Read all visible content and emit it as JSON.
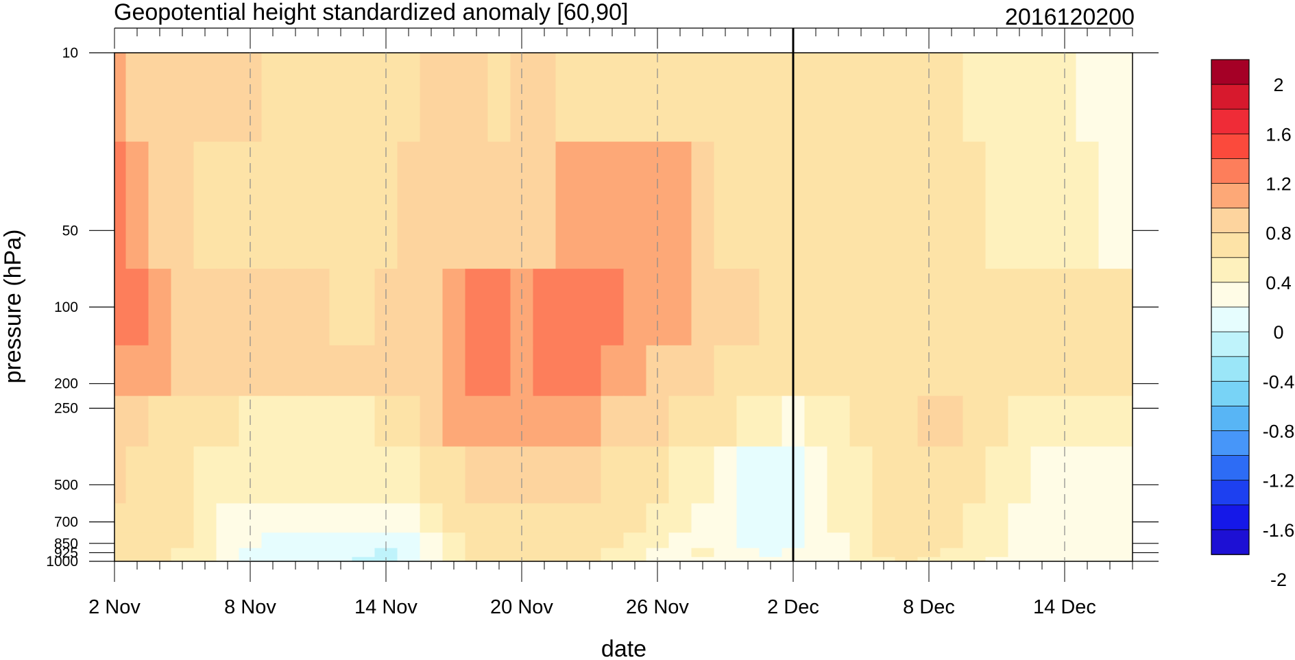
{
  "chart_data": {
    "type": "heatmap",
    "title": "Geopotential height standardized anomaly [60,90]",
    "subtitle": "2016120200",
    "xlabel": "date",
    "ylabel": "pressure (hPa)",
    "x": [
      "2016-11-02",
      "2016-11-03",
      "2016-11-04",
      "2016-11-05",
      "2016-11-06",
      "2016-11-07",
      "2016-11-08",
      "2016-11-09",
      "2016-11-10",
      "2016-11-11",
      "2016-11-12",
      "2016-11-13",
      "2016-11-14",
      "2016-11-15",
      "2016-11-16",
      "2016-11-17",
      "2016-11-18",
      "2016-11-19",
      "2016-11-20",
      "2016-11-21",
      "2016-11-22",
      "2016-11-23",
      "2016-11-24",
      "2016-11-25",
      "2016-11-26",
      "2016-11-27",
      "2016-11-28",
      "2016-11-29",
      "2016-11-30",
      "2016-12-01",
      "2016-12-02",
      "2016-12-03",
      "2016-12-04",
      "2016-12-05",
      "2016-12-06",
      "2016-12-07",
      "2016-12-08",
      "2016-12-09",
      "2016-12-10",
      "2016-12-11",
      "2016-12-12",
      "2016-12-13",
      "2016-12-14",
      "2016-12-15",
      "2016-12-16",
      "2016-12-17"
    ],
    "x_tick_labels": [
      "2 Nov",
      "8 Nov",
      "14 Nov",
      "20 Nov",
      "26 Nov",
      "2 Dec",
      "8 Dec",
      "14 Dec"
    ],
    "y_levels": [
      10,
      50,
      100,
      200,
      250,
      500,
      700,
      850,
      925,
      1000
    ],
    "y_tick_labels": [
      "10",
      "50",
      "100",
      "200",
      "250",
      "500",
      "700",
      "850",
      "925",
      "1000"
    ],
    "y_scale": "log",
    "ylim": [
      1000,
      10
    ],
    "marker_date": "2016-12-02",
    "colorbar": {
      "levels": [
        -2,
        -1.8,
        -1.6,
        -1.4,
        -1.2,
        -1,
        -0.8,
        -0.6,
        -0.4,
        -0.2,
        0,
        0.2,
        0.4,
        0.6,
        0.8,
        1,
        1.2,
        1.4,
        1.6,
        1.8,
        2
      ],
      "labels": [
        "2",
        "1.6",
        "1.2",
        "0.8",
        "0.4",
        "0",
        "-0.4",
        "-0.8",
        "-1.2",
        "-1.6",
        "-2"
      ],
      "colors_top_to_bottom": [
        "#a50026",
        "#d7192d",
        "#ef2c37",
        "#fb4a3c",
        "#fd7e5b",
        "#fda877",
        "#fdd49e",
        "#fde3a7",
        "#fef1bd",
        "#fffce6",
        "#e6fdfe",
        "#bff3fb",
        "#9be6f8",
        "#78d3f6",
        "#58b5f5",
        "#4796f9",
        "#2d6cf5",
        "#1d40f0",
        "#1518e8",
        "#1d10d4"
      ]
    },
    "z": [
      [
        0.85,
        0.78,
        0.6,
        0.65,
        0.7,
        0.6,
        0.6,
        0.5,
        0.48,
        0.55,
        0.52,
        0.5,
        0.56,
        0.55,
        0.6,
        0.62,
        0.66,
        0.58,
        0.6,
        0.6,
        0.58,
        0.52,
        0.5,
        0.5,
        0.55,
        0.5,
        0.5,
        0.45,
        0.45,
        0.45,
        0.5,
        0.46,
        0.42,
        0.42,
        0.41,
        0.44,
        0.46,
        0.45,
        0.38,
        0.35,
        0.3,
        0.25,
        0.2,
        0.15,
        0.1,
        0.05
      ],
      [
        1.0,
        0.85,
        0.7,
        0.6,
        0.5,
        0.45,
        0.55,
        0.55,
        0.45,
        0.45,
        0.5,
        0.5,
        0.55,
        0.6,
        0.6,
        0.65,
        0.7,
        0.7,
        0.75,
        0.78,
        0.82,
        0.85,
        0.9,
        0.95,
        0.95,
        0.85,
        0.7,
        0.55,
        0.5,
        0.5,
        0.55,
        0.55,
        0.52,
        0.5,
        0.5,
        0.5,
        0.55,
        0.5,
        0.45,
        0.38,
        0.33,
        0.3,
        0.25,
        0.22,
        0.18,
        0.15
      ],
      [
        1.05,
        1.0,
        0.95,
        0.78,
        0.7,
        0.65,
        0.65,
        0.6,
        0.6,
        0.6,
        0.55,
        0.55,
        0.6,
        0.62,
        0.7,
        0.85,
        1.0,
        1.05,
        0.95,
        1.05,
        1.15,
        1.15,
        1.05,
        0.98,
        0.92,
        0.85,
        0.78,
        0.65,
        0.6,
        0.55,
        0.55,
        0.55,
        0.55,
        0.55,
        0.5,
        0.5,
        0.5,
        0.5,
        0.48,
        0.45,
        0.42,
        0.42,
        0.42,
        0.42,
        0.42,
        0.42
      ],
      [
        0.92,
        0.85,
        0.8,
        0.72,
        0.68,
        0.62,
        0.62,
        0.6,
        0.6,
        0.6,
        0.6,
        0.6,
        0.62,
        0.65,
        0.7,
        0.9,
        1.1,
        1.15,
        0.95,
        1.05,
        1.1,
        1.05,
        0.95,
        0.85,
        0.78,
        0.7,
        0.62,
        0.55,
        0.5,
        0.45,
        0.4,
        0.45,
        0.5,
        0.52,
        0.55,
        0.55,
        0.55,
        0.55,
        0.55,
        0.5,
        0.45,
        0.42,
        0.4,
        0.4,
        0.4,
        0.4
      ],
      [
        0.65,
        0.6,
        0.58,
        0.55,
        0.5,
        0.42,
        0.38,
        0.38,
        0.35,
        0.35,
        0.35,
        0.38,
        0.4,
        0.45,
        0.6,
        0.8,
        0.95,
        0.9,
        0.85,
        0.85,
        0.85,
        0.82,
        0.75,
        0.68,
        0.6,
        0.5,
        0.45,
        0.4,
        0.3,
        0.2,
        0.15,
        0.2,
        0.3,
        0.4,
        0.5,
        0.55,
        0.6,
        0.6,
        0.55,
        0.45,
        0.35,
        0.3,
        0.28,
        0.28,
        0.25,
        0.22
      ],
      [
        0.6,
        0.55,
        0.52,
        0.48,
        0.35,
        0.32,
        0.3,
        0.3,
        0.3,
        0.28,
        0.3,
        0.32,
        0.32,
        0.35,
        0.4,
        0.5,
        0.62,
        0.6,
        0.6,
        0.6,
        0.6,
        0.6,
        0.55,
        0.5,
        0.42,
        0.32,
        0.25,
        0.12,
        -0.05,
        -0.1,
        -0.1,
        0.05,
        0.25,
        0.38,
        0.45,
        0.55,
        0.5,
        0.48,
        0.4,
        0.3,
        0.22,
        0.18,
        0.18,
        0.18,
        0.18,
        0.18
      ],
      [
        0.58,
        0.52,
        0.48,
        0.42,
        0.35,
        0.15,
        0.1,
        0.12,
        0.05,
        0.0,
        0.05,
        0.05,
        0.1,
        0.15,
        0.28,
        0.45,
        0.55,
        0.55,
        0.55,
        0.52,
        0.5,
        0.5,
        0.45,
        0.4,
        0.3,
        0.2,
        0.12,
        0.05,
        -0.1,
        -0.15,
        -0.1,
        0.05,
        0.2,
        0.32,
        0.42,
        0.48,
        0.48,
        0.45,
        0.38,
        0.25,
        0.18,
        0.15,
        0.15,
        0.15,
        0.15,
        0.15
      ],
      [
        0.55,
        0.5,
        0.45,
        0.4,
        0.3,
        0.1,
        0.0,
        -0.1,
        -0.05,
        -0.08,
        -0.1,
        -0.12,
        -0.15,
        -0.1,
        0.05,
        0.3,
        0.45,
        0.48,
        0.5,
        0.48,
        0.45,
        0.45,
        0.42,
        0.32,
        0.22,
        0.1,
        0.15,
        0.05,
        -0.05,
        -0.1,
        -0.05,
        0.05,
        0.15,
        0.3,
        0.4,
        0.45,
        0.42,
        0.42,
        0.35,
        0.22,
        0.15,
        0.12,
        0.12,
        0.12,
        0.12,
        0.12
      ],
      [
        0.52,
        0.48,
        0.45,
        0.38,
        0.25,
        0.05,
        -0.1,
        -0.15,
        -0.1,
        -0.1,
        -0.15,
        -0.18,
        -0.22,
        -0.15,
        0.02,
        0.25,
        0.42,
        0.45,
        0.48,
        0.46,
        0.42,
        0.42,
        0.38,
        0.28,
        0.18,
        0.08,
        0.2,
        0.08,
        0.0,
        -0.05,
        0.0,
        0.05,
        0.12,
        0.28,
        0.4,
        0.45,
        0.4,
        0.38,
        0.3,
        0.2,
        0.12,
        0.1,
        0.1,
        0.1,
        0.1,
        0.1
      ],
      [
        0.5,
        0.46,
        0.44,
        0.38,
        0.22,
        0.05,
        -0.15,
        -0.2,
        -0.12,
        -0.12,
        -0.18,
        -0.22,
        -0.25,
        -0.18,
        0.0,
        0.22,
        0.4,
        0.42,
        0.45,
        0.44,
        0.4,
        0.4,
        0.35,
        0.25,
        0.15,
        0.06,
        0.15,
        0.05,
        0.0,
        0.0,
        0.02,
        0.05,
        0.1,
        0.25,
        0.38,
        0.42,
        0.38,
        0.35,
        0.28,
        0.18,
        0.1,
        0.08,
        0.08,
        0.08,
        0.08,
        0.08
      ]
    ]
  }
}
